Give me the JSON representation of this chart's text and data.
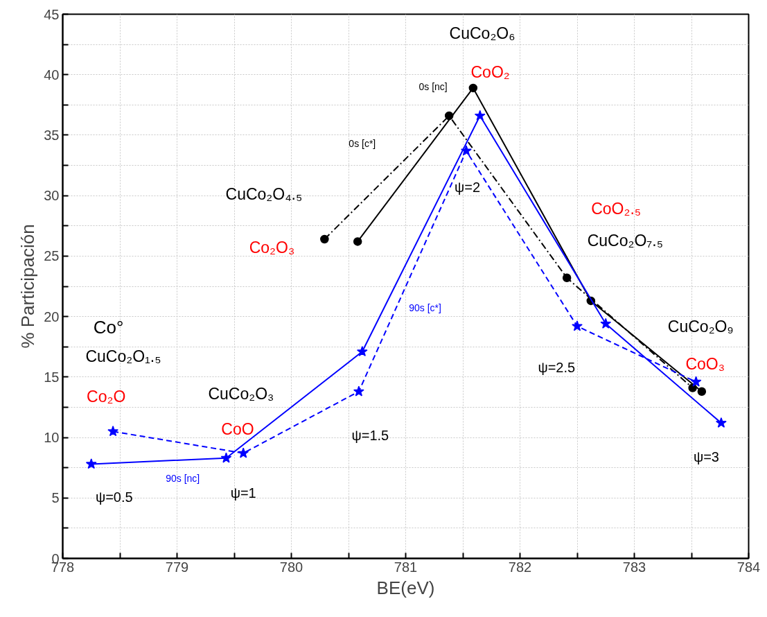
{
  "chart_data": {
    "type": "line",
    "xlabel": "BE(eV)",
    "ylabel": "% Participación",
    "xlim": [
      778,
      784
    ],
    "ylim": [
      0,
      45
    ],
    "xticks": [
      778,
      {
        "value": 778.5,
        "label": null
      },
      779,
      {
        "value": 779.5,
        "label": null
      },
      780,
      {
        "value": 780.5,
        "label": null
      },
      781,
      {
        "value": 781.5,
        "label": null
      },
      782,
      {
        "value": 782.5,
        "label": null
      },
      783,
      {
        "value": 783.5,
        "label": null
      },
      784
    ],
    "yticks": [
      0,
      {
        "value": 2.5,
        "label": null
      },
      5,
      {
        "value": 7.5,
        "label": null
      },
      10,
      {
        "value": 12.5,
        "label": null
      },
      15,
      {
        "value": 17.5,
        "label": null
      },
      20,
      {
        "value": 22.5,
        "label": null
      },
      25,
      {
        "value": 27.5,
        "label": null
      },
      30,
      {
        "value": 32.5,
        "label": null
      },
      35,
      {
        "value": 37.5,
        "label": null
      },
      40,
      {
        "value": 42.5,
        "label": null
      },
      45
    ],
    "grid": true,
    "legend": false,
    "series": [
      {
        "name": "0s [nc]",
        "color": "#000000",
        "line_style": "solid",
        "marker": "circle",
        "x": [
          780.58,
          781.59,
          782.62,
          783.59
        ],
        "values": [
          26.2,
          38.9,
          21.3,
          13.8
        ]
      },
      {
        "name": "0s [c*]",
        "color": "#000000",
        "line_style": "dashdot",
        "marker": "circle",
        "x": [
          780.29,
          781.38,
          782.41,
          783.51
        ],
        "values": [
          26.4,
          36.6,
          23.2,
          14.1
        ]
      },
      {
        "name": "90s [nc]",
        "color": "#0000ff",
        "line_style": "solid",
        "marker": "star",
        "x": [
          778.25,
          779.43,
          780.62,
          781.65,
          782.75,
          783.76
        ],
        "values": [
          7.8,
          8.3,
          17.1,
          36.6,
          19.4,
          11.2
        ]
      },
      {
        "name": "90s [c*]",
        "color": "#0000ff",
        "line_style": "dashed",
        "marker": "star",
        "x": [
          778.44,
          779.58,
          780.59,
          781.53,
          782.5,
          783.54
        ],
        "values": [
          10.5,
          8.7,
          13.8,
          33.7,
          19.2,
          14.6
        ]
      }
    ],
    "annotations": [
      "CuCo₂O₆",
      "CoO₂",
      "CuCo₂O₄.₅",
      "Co₂O₃",
      "ψ=2",
      "CoO₂.₅",
      "CuCo₂O₇.₅",
      "ψ=2.5",
      "CuCo₂O₉",
      "CoO₃",
      "ψ=3",
      "Co°",
      "CuCo₂O₁.₅",
      "Co₂O",
      "CuCo₂O₃",
      "CoO",
      "ψ=1.5",
      "ψ=0.5",
      "ψ=1"
    ]
  }
}
